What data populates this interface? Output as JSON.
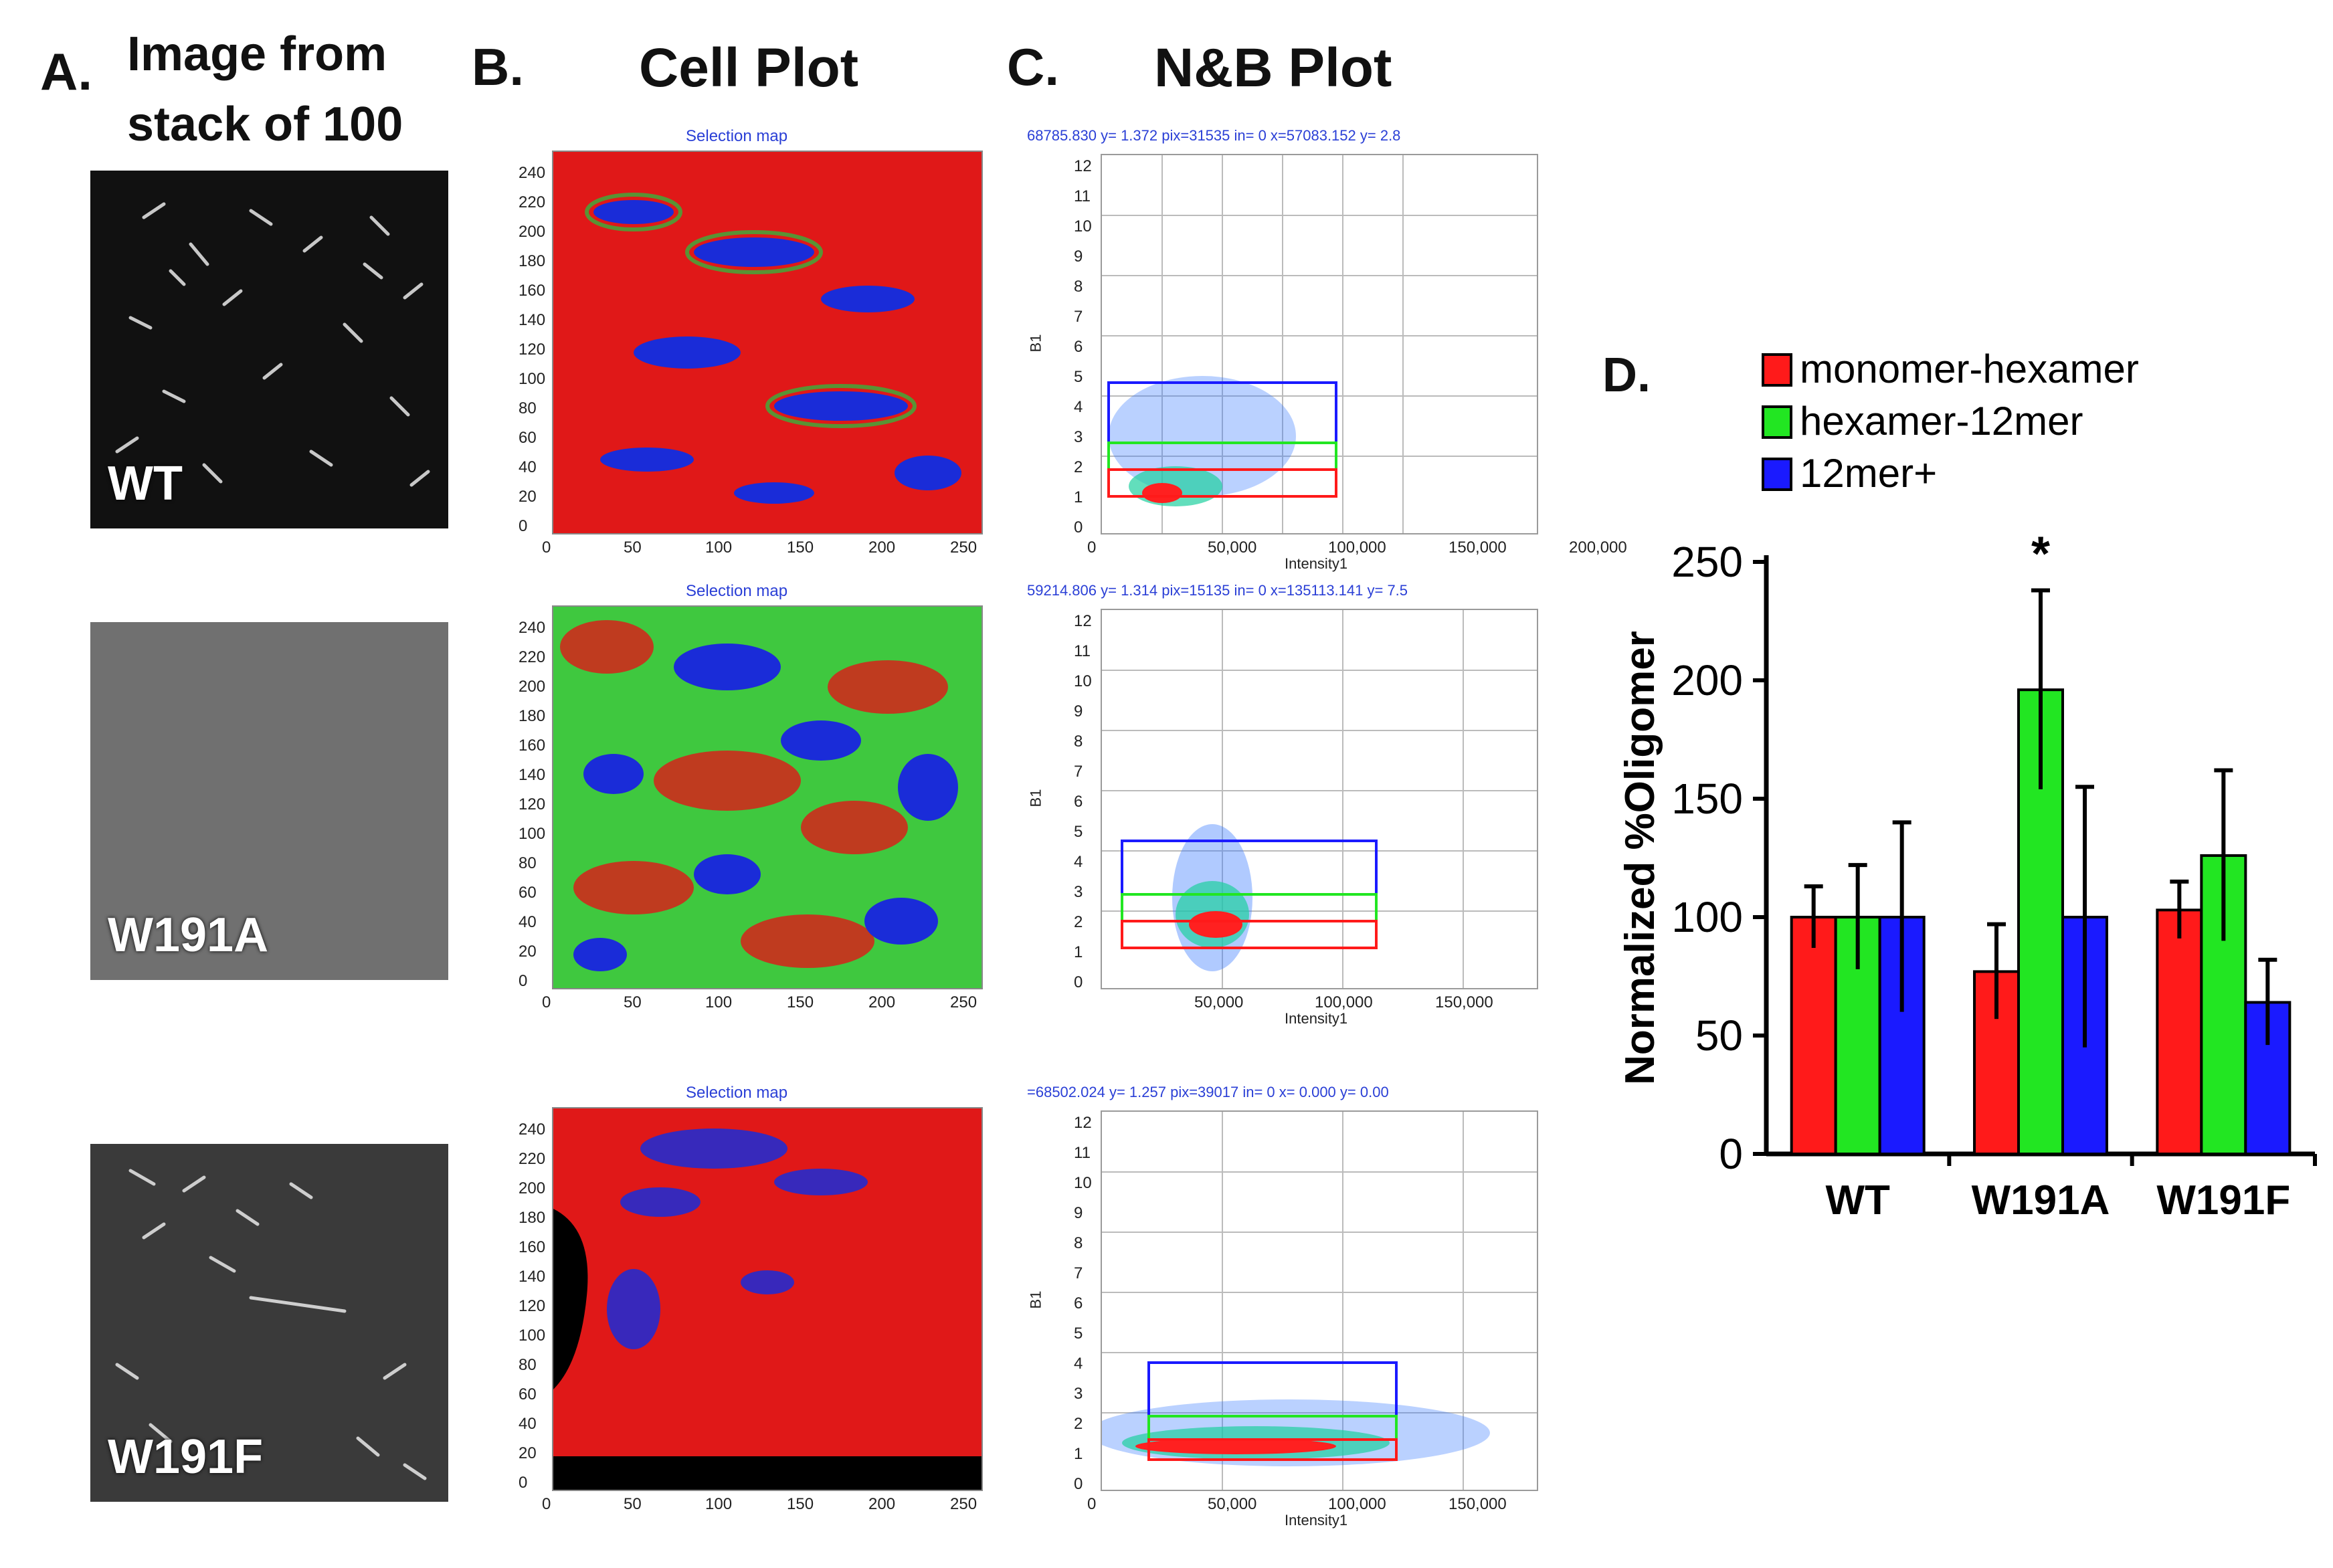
{
  "panels": {
    "a": {
      "letter": "A.",
      "title_line1": "Image from",
      "title_line2": "stack of 100"
    },
    "b": {
      "letter": "B.",
      "title": "Cell Plot"
    },
    "c": {
      "letter": "C.",
      "title": "N&B Plot"
    },
    "d": {
      "letter": "D."
    }
  },
  "samples": [
    "WT",
    "W191A",
    "W191F"
  ],
  "cell_plot": {
    "title": "Selection map",
    "x_ticks": [
      "0",
      "50",
      "100",
      "150",
      "200",
      "250"
    ],
    "y_ticks": [
      "240",
      "220",
      "200",
      "180",
      "160",
      "140",
      "120",
      "100",
      "80",
      "60",
      "40",
      "20",
      "0"
    ]
  },
  "nb_plots": [
    {
      "readout": "68785.830 y=   1.372 pix=31535 in=    0 x=57083.152 y=   2.8",
      "x_ticks": [
        "0",
        "50,000",
        "100,000",
        "150,000",
        "200,000"
      ]
    },
    {
      "readout": "59214.806 y=   1.314 pix=15135 in=    0 x=135113.141 y=   7.5",
      "x_ticks": [
        "50,000",
        "100,000",
        "150,000"
      ]
    },
    {
      "readout": "=68502.024 y=   1.257 pix=39017 in=    0 x=   0.000 y=   0.00",
      "x_ticks": [
        "0",
        "50,000",
        "100,000",
        "150,000"
      ]
    }
  ],
  "nb_axes": {
    "xlabel": "Intensity1",
    "ylabel": "B1",
    "y_ticks": [
      "12",
      "11",
      "10",
      "9",
      "8",
      "7",
      "6",
      "5",
      "4",
      "3",
      "2",
      "1",
      "0"
    ]
  },
  "colors": {
    "monomer": "#ff1a1a",
    "hexamer": "#22e622",
    "oligo": "#1a1aff",
    "readout": "#2a3fd6"
  },
  "chart_data": {
    "type": "bar",
    "title": "",
    "categories": [
      "WT",
      "W191A",
      "W191F"
    ],
    "series": [
      {
        "name": "monomer-hexamer",
        "color": "#ff1a1a",
        "values": [
          100,
          77,
          103
        ],
        "errors": [
          13,
          20,
          12
        ]
      },
      {
        "name": "hexamer-12mer",
        "color": "#22e622",
        "values": [
          100,
          196,
          126
        ],
        "errors": [
          22,
          42,
          36
        ]
      },
      {
        "name": "12mer+",
        "color": "#1a1aff",
        "values": [
          100,
          100,
          64
        ],
        "errors": [
          40,
          55,
          18
        ]
      }
    ],
    "ylabel": "Normalized %Oligomer",
    "xlabel": "",
    "ylim": [
      0,
      250
    ],
    "yticks": [
      0,
      50,
      100,
      150,
      200,
      250
    ],
    "annotation": "*",
    "annotation_category": "W191A",
    "annotation_series": "hexamer-12mer",
    "legend": "top"
  }
}
